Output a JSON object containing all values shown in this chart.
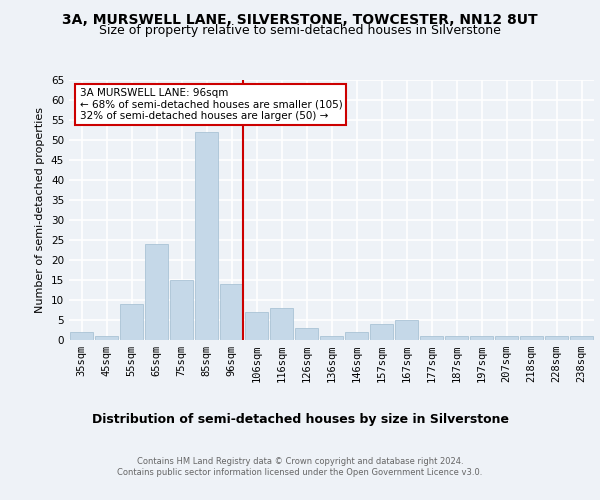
{
  "title": "3A, MURSWELL LANE, SILVERSTONE, TOWCESTER, NN12 8UT",
  "subtitle": "Size of property relative to semi-detached houses in Silverstone",
  "xlabel": "Distribution of semi-detached houses by size in Silverstone",
  "ylabel": "Number of semi-detached properties",
  "footer": "Contains HM Land Registry data © Crown copyright and database right 2024.\nContains public sector information licensed under the Open Government Licence v3.0.",
  "categories": [
    "35sqm",
    "45sqm",
    "55sqm",
    "65sqm",
    "75sqm",
    "85sqm",
    "96sqm",
    "106sqm",
    "116sqm",
    "126sqm",
    "136sqm",
    "146sqm",
    "157sqm",
    "167sqm",
    "177sqm",
    "187sqm",
    "197sqm",
    "207sqm",
    "218sqm",
    "228sqm",
    "238sqm"
  ],
  "values": [
    2,
    1,
    9,
    24,
    15,
    52,
    14,
    7,
    8,
    3,
    1,
    2,
    4,
    5,
    1,
    1,
    1,
    1,
    1,
    1,
    1
  ],
  "bar_color": "#c5d8e8",
  "bar_edge_color": "#a0bcd0",
  "vline_x_idx": 6,
  "vline_color": "#cc0000",
  "annotation_text": "3A MURSWELL LANE: 96sqm\n← 68% of semi-detached houses are smaller (105)\n32% of semi-detached houses are larger (50) →",
  "annotation_box_color": "#ffffff",
  "annotation_box_edge_color": "#cc0000",
  "ylim": [
    0,
    65
  ],
  "yticks": [
    0,
    5,
    10,
    15,
    20,
    25,
    30,
    35,
    40,
    45,
    50,
    55,
    60,
    65
  ],
  "background_color": "#eef2f7",
  "grid_color": "#ffffff",
  "title_fontsize": 10,
  "subtitle_fontsize": 9,
  "ylabel_fontsize": 8,
  "xlabel_fontsize": 9,
  "tick_fontsize": 7.5,
  "footer_fontsize": 6,
  "annotation_fontsize": 7.5
}
